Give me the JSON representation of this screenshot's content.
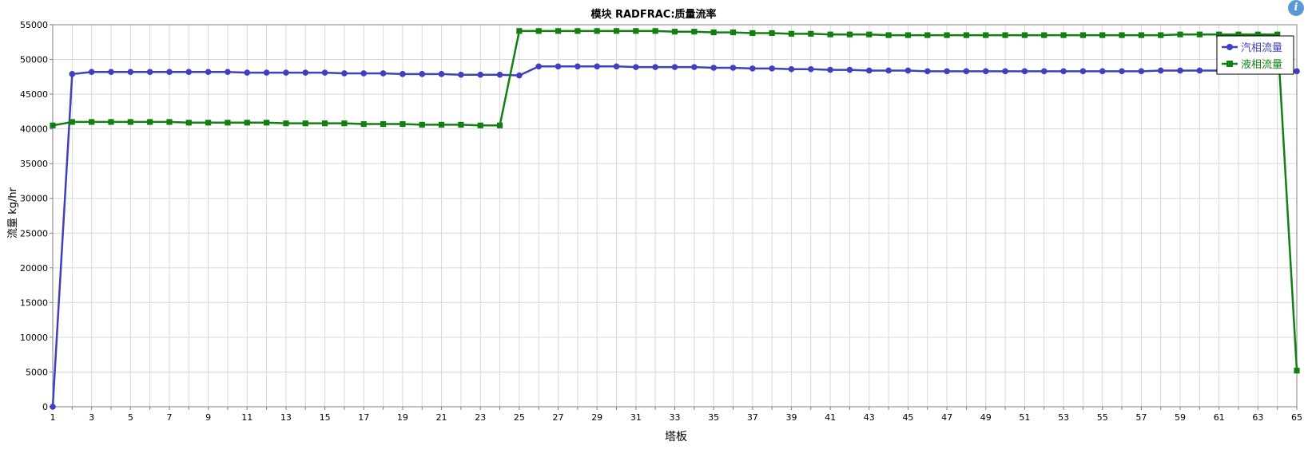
{
  "info_icon": {
    "glyph": "i",
    "icon": "info-icon"
  },
  "chart_data": {
    "type": "line",
    "title": "模块 RADFRAC:质量流率",
    "xlabel": "塔板",
    "ylabel": "流量 kg/hr",
    "xlim": [
      1,
      65
    ],
    "ylim": [
      0,
      55000
    ],
    "yticks": [
      0,
      5000,
      10000,
      15000,
      20000,
      25000,
      30000,
      35000,
      40000,
      45000,
      50000,
      55000
    ],
    "xticks": [
      1,
      3,
      5,
      7,
      9,
      11,
      13,
      15,
      17,
      19,
      21,
      23,
      25,
      27,
      29,
      31,
      33,
      35,
      37,
      39,
      41,
      43,
      45,
      47,
      49,
      51,
      53,
      55,
      57,
      59,
      61,
      63,
      65
    ],
    "grid": true,
    "legend_position": "top-right",
    "x": [
      1,
      2,
      3,
      4,
      5,
      6,
      7,
      8,
      9,
      10,
      11,
      12,
      13,
      14,
      15,
      16,
      17,
      18,
      19,
      20,
      21,
      22,
      23,
      24,
      25,
      26,
      27,
      28,
      29,
      30,
      31,
      32,
      33,
      34,
      35,
      36,
      37,
      38,
      39,
      40,
      41,
      42,
      43,
      44,
      45,
      46,
      47,
      48,
      49,
      50,
      51,
      52,
      53,
      54,
      55,
      56,
      57,
      58,
      59,
      60,
      61,
      62,
      63,
      64,
      65
    ],
    "series": [
      {
        "name": "汽相流量",
        "color": "#3f3fbf",
        "marker": "circle",
        "values": [
          0,
          47900,
          48200,
          48200,
          48200,
          48200,
          48200,
          48200,
          48200,
          48200,
          48100,
          48100,
          48100,
          48100,
          48100,
          48000,
          48000,
          48000,
          47900,
          47900,
          47900,
          47800,
          47800,
          47800,
          47700,
          49000,
          49000,
          49000,
          49000,
          49000,
          48900,
          48900,
          48900,
          48900,
          48800,
          48800,
          48700,
          48700,
          48600,
          48600,
          48500,
          48500,
          48400,
          48400,
          48400,
          48300,
          48300,
          48300,
          48300,
          48300,
          48300,
          48300,
          48300,
          48300,
          48300,
          48300,
          48300,
          48400,
          48400,
          48400,
          48400,
          48400,
          48400,
          48400,
          48300
        ]
      },
      {
        "name": "液相流量",
        "color": "#118011",
        "marker": "square",
        "values": [
          40500,
          41000,
          41000,
          41000,
          41000,
          41000,
          41000,
          40900,
          40900,
          40900,
          40900,
          40900,
          40800,
          40800,
          40800,
          40800,
          40700,
          40700,
          40700,
          40600,
          40600,
          40600,
          40500,
          40500,
          54100,
          54100,
          54100,
          54100,
          54100,
          54100,
          54100,
          54100,
          54000,
          54000,
          53900,
          53900,
          53800,
          53800,
          53700,
          53700,
          53600,
          53600,
          53600,
          53500,
          53500,
          53500,
          53500,
          53500,
          53500,
          53500,
          53500,
          53500,
          53500,
          53500,
          53500,
          53500,
          53500,
          53500,
          53600,
          53600,
          53600,
          53600,
          53600,
          53600,
          5200
        ]
      }
    ]
  }
}
